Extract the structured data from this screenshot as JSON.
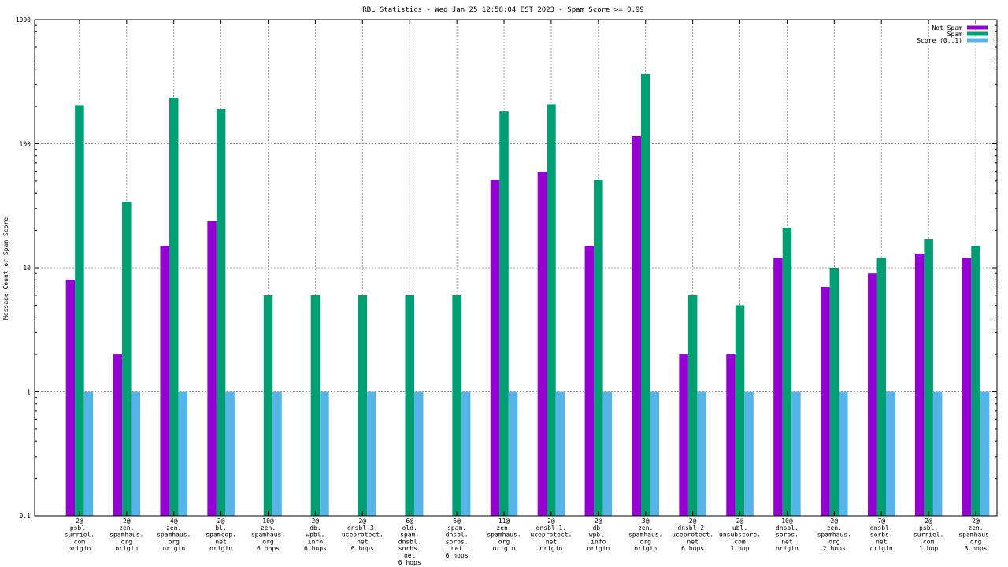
{
  "chart_data": {
    "type": "bar",
    "title": "RBL Statistics - Wed Jan 25 12:58:04 EST 2023 - Spam Score >= 0.99",
    "ylabel": "Message Count or Spam Score",
    "xlabel": "",
    "yscale": "log",
    "ylim": [
      0.1,
      1000
    ],
    "yticks": [
      "0.1",
      "1",
      "10",
      "100",
      "1000"
    ],
    "grid": true,
    "legend_position": "top-right",
    "categories": [
      [
        "2@",
        "psbl.",
        "surriel.",
        "com",
        "origin"
      ],
      [
        "2@",
        "zen.",
        "spamhaus.",
        "org",
        "origin"
      ],
      [
        "4@",
        "zen.",
        "spamhaus.",
        "org",
        "origin"
      ],
      [
        "2@",
        "bl.",
        "spamcop.",
        "net",
        "origin"
      ],
      [
        "10@",
        "zen.",
        "spamhaus.",
        "org",
        "6 hops"
      ],
      [
        "2@",
        "db.",
        "wpbl.",
        "info",
        "6 hops"
      ],
      [
        "2@",
        "dnsbl-3.",
        "uceprotect.",
        "net",
        "6 hops"
      ],
      [
        "6@",
        "old.",
        "spam.",
        "dnsbl.",
        "sorbs.",
        "net",
        "6 hops"
      ],
      [
        "6@",
        "spam.",
        "dnsbl.",
        "sorbs.",
        "net",
        "6 hops"
      ],
      [
        "11@",
        "zen.",
        "spamhaus.",
        "org",
        "origin"
      ],
      [
        "2@",
        "dnsbl-1.",
        "uceprotect.",
        "net",
        "origin"
      ],
      [
        "2@",
        "db.",
        "wpbl.",
        "info",
        "origin"
      ],
      [
        "3@",
        "zen.",
        "spamhaus.",
        "org",
        "origin"
      ],
      [
        "2@",
        "dnsbl-2.",
        "uceprotect.",
        "net",
        "6 hops"
      ],
      [
        "2@",
        "ubl.",
        "unsubscore.",
        "com",
        "1 hop"
      ],
      [
        "10@",
        "dnsbl.",
        "sorbs.",
        "net",
        "origin"
      ],
      [
        "2@",
        "zen.",
        "spamhaus.",
        "org",
        "2 hops"
      ],
      [
        "7@",
        "dnsbl.",
        "sorbs.",
        "net",
        "origin"
      ],
      [
        "2@",
        "psbl.",
        "surriel.",
        "com",
        "1 hop"
      ],
      [
        "2@",
        "zen.",
        "spamhaus.",
        "org",
        "3 hops"
      ]
    ],
    "series": [
      {
        "name": "Not Spam",
        "color": "#9400d3",
        "values": [
          8,
          2,
          15,
          24,
          null,
          null,
          null,
          null,
          null,
          51,
          59,
          15,
          115,
          2,
          2,
          12,
          7,
          9,
          13,
          12
        ]
      },
      {
        "name": "Spam",
        "color": "#009e73",
        "values": [
          205,
          34,
          235,
          190,
          6,
          6,
          6,
          6,
          6,
          183,
          208,
          51,
          365,
          6,
          5,
          21,
          10,
          12,
          17,
          15
        ]
      },
      {
        "name": "Score (0..1)",
        "color": "#56b4e9",
        "values": [
          1,
          1,
          1,
          1,
          1,
          1,
          1,
          1,
          1,
          1,
          1,
          1,
          1,
          1,
          1,
          1,
          1,
          1,
          1,
          1
        ]
      }
    ]
  }
}
